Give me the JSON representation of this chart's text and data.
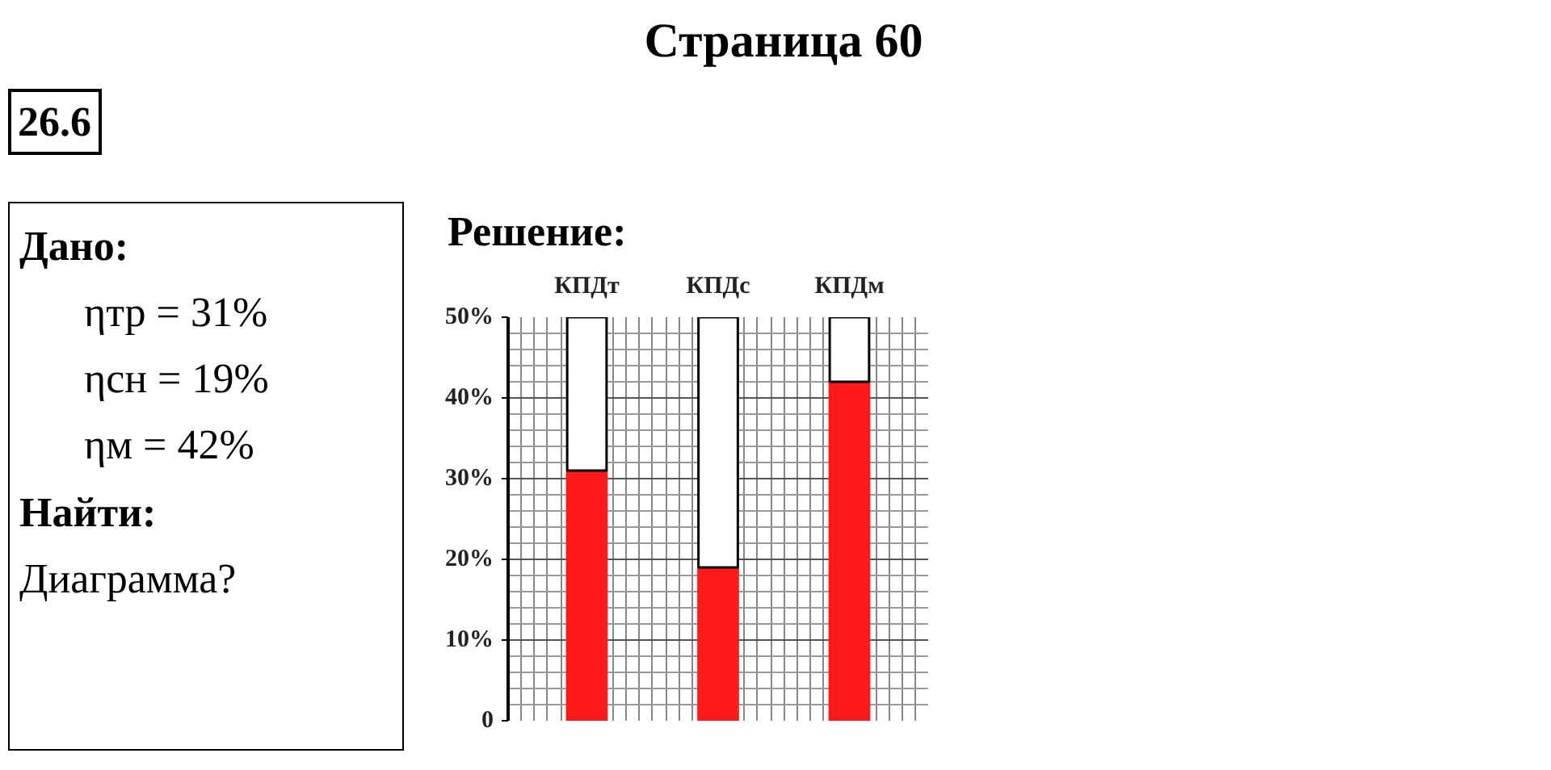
{
  "chart_data": {
    "type": "bar",
    "stacked": true,
    "title": "Страница 60",
    "annotations": [
      "26.6",
      "Дано:",
      "ηтр = 31%",
      "ηсн = 19%",
      "ηм = 42%",
      "Найти:",
      "Диаграмма?",
      "Решение:"
    ],
    "categories": [
      "КПДт",
      "КПДс",
      "КПДм"
    ],
    "series": [
      {
        "color": "#ff1a1a",
        "values": [
          31,
          19,
          42
        ]
      },
      {
        "color": "#ffffff",
        "values": [
          19,
          31,
          8
        ]
      }
    ],
    "ylim": [
      0,
      50
    ],
    "yticks": [
      0,
      {
        "value": 10,
        "label": "10%"
      },
      {
        "value": 20,
        "label": "20%"
      },
      {
        "value": 30,
        "label": "30%"
      },
      {
        "value": 40,
        "label": "40%"
      },
      {
        "value": 50,
        "label": "50%"
      }
    ],
    "grid": true
  }
}
